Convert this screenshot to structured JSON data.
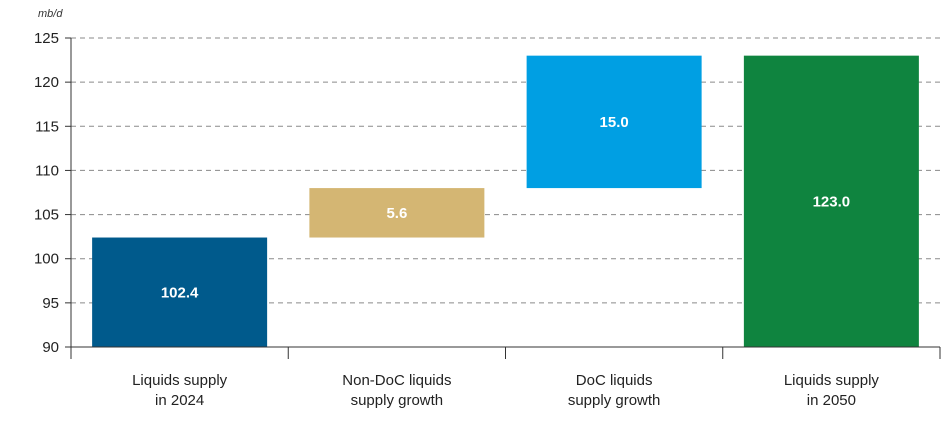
{
  "chart_data": {
    "type": "bar",
    "subtype": "waterfall",
    "unit_label": "mb/d",
    "categories": [
      [
        "Liquids supply",
        "in 2024"
      ],
      [
        "Non-DoC liquids",
        "supply growth"
      ],
      [
        "DoC liquids",
        "supply growth"
      ],
      [
        "Liquids supply",
        "in 2050"
      ]
    ],
    "bars": [
      {
        "start": 90,
        "end": 102.4,
        "label": "102.4",
        "color": "#005a8c"
      },
      {
        "start": 102.4,
        "end": 108.0,
        "label": "5.6",
        "color": "#d4b673"
      },
      {
        "start": 108.0,
        "end": 123.0,
        "label": "15.0",
        "color": "#009fe3"
      },
      {
        "start": 90,
        "end": 123.0,
        "label": "123.0",
        "color": "#0f843f"
      }
    ],
    "ylim": [
      90,
      125
    ],
    "yticks": [
      90,
      95,
      100,
      105,
      110,
      115,
      120,
      125
    ],
    "grid": true,
    "xlabel": "",
    "ylabel": ""
  }
}
